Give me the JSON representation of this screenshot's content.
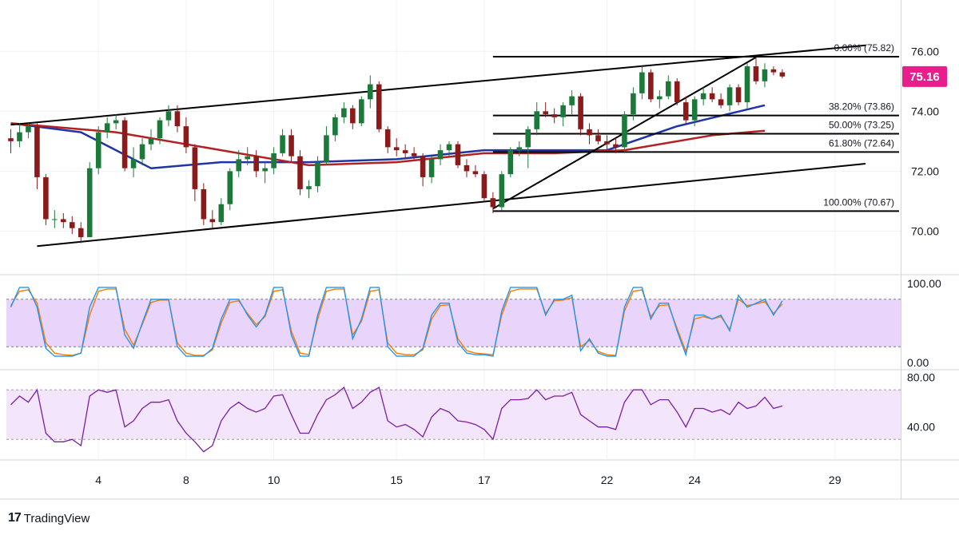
{
  "brand": {
    "logo_glyph": "17",
    "name": "TradingView"
  },
  "chart_data": {
    "type": "candlestick",
    "last_price": "75.16",
    "price_axis": {
      "ticks": [
        "76.00",
        "74.00",
        "72.00",
        "70.00"
      ],
      "ylim": [
        68.6,
        77.5
      ]
    },
    "x_axis": {
      "ticks": [
        "4",
        "8",
        "10",
        "15",
        "17",
        "22",
        "24",
        "29"
      ],
      "tick_index": [
        10,
        20,
        30,
        44,
        54,
        68,
        78,
        94
      ],
      "xlim": [
        0,
        102
      ]
    },
    "candles": [
      [
        73.1,
        72.6,
        73.4,
        73.0
      ],
      [
        73.0,
        72.8,
        73.6,
        73.3
      ],
      [
        73.3,
        73.1,
        73.6,
        73.5
      ],
      [
        73.5,
        71.4,
        73.6,
        71.8
      ],
      [
        71.8,
        70.2,
        71.9,
        70.4
      ],
      [
        70.4,
        70.1,
        70.7,
        70.4
      ],
      [
        70.4,
        70.1,
        70.6,
        70.3
      ],
      [
        70.3,
        69.9,
        70.5,
        70.1
      ],
      [
        70.1,
        69.6,
        70.3,
        69.8
      ],
      [
        69.8,
        69.9,
        72.3,
        72.1
      ],
      [
        72.1,
        71.9,
        73.5,
        73.3
      ],
      [
        73.3,
        73.1,
        73.8,
        73.6
      ],
      [
        73.6,
        73.4,
        73.9,
        73.7
      ],
      [
        73.7,
        72.0,
        73.8,
        72.1
      ],
      [
        72.1,
        71.8,
        72.8,
        72.4
      ],
      [
        72.4,
        72.2,
        73.1,
        72.9
      ],
      [
        72.9,
        72.7,
        73.4,
        73.1
      ],
      [
        73.1,
        72.9,
        73.8,
        73.7
      ],
      [
        73.7,
        73.5,
        74.2,
        74.0
      ],
      [
        74.0,
        73.3,
        74.2,
        73.5
      ],
      [
        73.5,
        72.6,
        73.8,
        72.8
      ],
      [
        72.8,
        71.0,
        72.9,
        71.4
      ],
      [
        71.4,
        70.2,
        71.6,
        70.4
      ],
      [
        70.4,
        70.1,
        70.7,
        70.3
      ],
      [
        70.3,
        70.2,
        71.1,
        70.9
      ],
      [
        70.9,
        70.7,
        72.1,
        72.0
      ],
      [
        72.0,
        71.8,
        72.7,
        72.4
      ],
      [
        72.4,
        72.2,
        72.8,
        72.5
      ],
      [
        72.5,
        71.8,
        72.7,
        72.0
      ],
      [
        72.0,
        71.6,
        72.3,
        72.1
      ],
      [
        72.1,
        71.9,
        72.8,
        72.6
      ],
      [
        72.6,
        72.5,
        73.4,
        73.2
      ],
      [
        73.2,
        72.3,
        73.4,
        72.5
      ],
      [
        72.5,
        71.2,
        72.7,
        71.4
      ],
      [
        71.4,
        71.1,
        71.7,
        71.5
      ],
      [
        71.5,
        71.3,
        72.5,
        72.3
      ],
      [
        72.3,
        72.2,
        73.5,
        73.2
      ],
      [
        73.2,
        73.0,
        73.9,
        73.8
      ],
      [
        73.8,
        73.6,
        74.3,
        74.1
      ],
      [
        74.1,
        73.4,
        74.2,
        73.6
      ],
      [
        73.6,
        73.5,
        74.5,
        74.4
      ],
      [
        74.4,
        74.1,
        75.2,
        74.9
      ],
      [
        74.9,
        73.3,
        75.0,
        73.4
      ],
      [
        73.4,
        72.6,
        73.5,
        72.8
      ],
      [
        72.8,
        72.5,
        73.1,
        72.7
      ],
      [
        72.7,
        72.4,
        72.9,
        72.6
      ],
      [
        72.6,
        72.4,
        72.8,
        72.5
      ],
      [
        72.5,
        71.5,
        72.6,
        71.8
      ],
      [
        71.8,
        71.6,
        72.5,
        72.4
      ],
      [
        72.4,
        72.2,
        72.9,
        72.7
      ],
      [
        72.7,
        72.5,
        73.0,
        72.9
      ],
      [
        72.9,
        72.1,
        73.0,
        72.2
      ],
      [
        72.2,
        71.8,
        72.4,
        72.0
      ],
      [
        72.0,
        71.8,
        72.2,
        71.9
      ],
      [
        71.9,
        71.0,
        72.0,
        71.1
      ],
      [
        71.1,
        70.6,
        71.3,
        70.8
      ],
      [
        70.8,
        70.7,
        72.0,
        71.9
      ],
      [
        71.9,
        71.8,
        72.8,
        72.7
      ],
      [
        72.7,
        72.5,
        73.0,
        72.8
      ],
      [
        72.8,
        72.1,
        73.5,
        73.4
      ],
      [
        73.4,
        73.2,
        74.3,
        74.0
      ],
      [
        74.0,
        73.8,
        74.3,
        73.9
      ],
      [
        73.9,
        73.6,
        74.1,
        73.8
      ],
      [
        73.8,
        73.5,
        74.3,
        74.2
      ],
      [
        74.2,
        73.9,
        74.7,
        74.5
      ],
      [
        74.5,
        73.2,
        74.6,
        73.4
      ],
      [
        73.4,
        72.9,
        73.6,
        73.2
      ],
      [
        73.2,
        72.9,
        73.4,
        73.0
      ],
      [
        73.0,
        72.7,
        73.2,
        72.9
      ],
      [
        72.9,
        72.6,
        73.1,
        72.8
      ],
      [
        72.8,
        72.6,
        74.0,
        73.9
      ],
      [
        73.9,
        73.7,
        74.8,
        74.6
      ],
      [
        74.6,
        74.4,
        75.5,
        75.3
      ],
      [
        75.3,
        74.3,
        75.4,
        74.4
      ],
      [
        74.4,
        74.1,
        74.7,
        74.5
      ],
      [
        74.5,
        74.4,
        75.2,
        75.0
      ],
      [
        75.0,
        74.2,
        75.1,
        74.3
      ],
      [
        74.3,
        73.6,
        74.5,
        73.7
      ],
      [
        73.7,
        73.5,
        74.5,
        74.4
      ],
      [
        74.4,
        74.2,
        74.8,
        74.6
      ],
      [
        74.6,
        74.3,
        74.8,
        74.4
      ],
      [
        74.4,
        74.1,
        74.6,
        74.2
      ],
      [
        74.2,
        74.0,
        74.9,
        74.8
      ],
      [
        74.8,
        74.2,
        74.9,
        74.3
      ],
      [
        74.3,
        74.1,
        75.6,
        75.5
      ],
      [
        75.5,
        74.9,
        75.8,
        75.0
      ],
      [
        75.0,
        74.8,
        75.6,
        75.4
      ],
      [
        75.4,
        75.2,
        75.5,
        75.3
      ],
      [
        75.3,
        75.1,
        75.4,
        75.16
      ]
    ],
    "moving_averages": [
      {
        "name": "",
        "color": "#2035a3",
        "points": [
          [
            0,
            73.6
          ],
          [
            8,
            73.3
          ],
          [
            16,
            72.1
          ],
          [
            24,
            72.3
          ],
          [
            34,
            72.3
          ],
          [
            44,
            72.4
          ],
          [
            54,
            72.7
          ],
          [
            62,
            72.7
          ],
          [
            68,
            72.7
          ],
          [
            76,
            73.5
          ],
          [
            86,
            74.2
          ]
        ]
      },
      {
        "name": "",
        "color": "#b22222",
        "points": [
          [
            0,
            73.6
          ],
          [
            12,
            73.3
          ],
          [
            24,
            72.7
          ],
          [
            34,
            72.2
          ],
          [
            44,
            72.3
          ],
          [
            54,
            72.6
          ],
          [
            62,
            72.6
          ],
          [
            70,
            72.7
          ],
          [
            80,
            73.2
          ],
          [
            86,
            73.35
          ]
        ]
      }
    ],
    "trendlines": [
      {
        "from": [
          3,
          69.5
        ],
        "to": [
          97.5,
          72.25
        ]
      },
      {
        "from": [
          0,
          73.55
        ],
        "to": [
          97.5,
          76.2
        ]
      },
      {
        "from": [
          55,
          70.75
        ],
        "to": [
          85,
          75.8
        ]
      }
    ],
    "fibonacci": {
      "x_start": 55,
      "x_end": 104,
      "levels": [
        {
          "label": "0.00% (75.82)",
          "price": 75.82
        },
        {
          "label": "38.20% (73.86)",
          "price": 73.86
        },
        {
          "label": "50.00% (73.25)",
          "price": 73.25
        },
        {
          "label": "61.80% (72.64)",
          "price": 72.64
        },
        {
          "label": "100.00% (70.67)",
          "price": 70.67
        }
      ]
    },
    "stochastic": {
      "ticks": [
        "100.00",
        "0.00"
      ],
      "ylim": [
        -8,
        108
      ],
      "band": [
        20,
        80
      ],
      "k": [
        70,
        95,
        95,
        70,
        18,
        8,
        8,
        8,
        12,
        70,
        95,
        95,
        95,
        35,
        18,
        50,
        80,
        80,
        80,
        20,
        8,
        8,
        8,
        18,
        55,
        80,
        80,
        60,
        45,
        60,
        95,
        95,
        35,
        8,
        8,
        60,
        95,
        95,
        95,
        30,
        55,
        95,
        95,
        20,
        8,
        8,
        8,
        18,
        60,
        75,
        75,
        25,
        12,
        10,
        10,
        8,
        65,
        95,
        95,
        95,
        95,
        60,
        80,
        80,
        85,
        15,
        30,
        12,
        8,
        8,
        70,
        95,
        95,
        55,
        75,
        75,
        40,
        10,
        60,
        60,
        55,
        60,
        40,
        85,
        70,
        75,
        80,
        60,
        78
      ],
      "d": [
        72,
        90,
        92,
        75,
        25,
        12,
        10,
        9,
        12,
        60,
        90,
        93,
        93,
        42,
        22,
        48,
        76,
        79,
        79,
        25,
        12,
        9,
        9,
        16,
        50,
        76,
        78,
        62,
        48,
        58,
        90,
        92,
        40,
        12,
        10,
        55,
        90,
        93,
        93,
        35,
        52,
        90,
        92,
        25,
        12,
        10,
        10,
        16,
        55,
        72,
        73,
        30,
        15,
        12,
        11,
        10,
        60,
        90,
        93,
        93,
        93,
        62,
        78,
        79,
        82,
        20,
        28,
        14,
        10,
        9,
        65,
        90,
        92,
        58,
        72,
        73,
        43,
        14,
        55,
        58,
        55,
        58,
        42,
        80,
        72,
        74,
        77,
        62,
        74
      ]
    },
    "rsi": {
      "ticks": [
        "80.00",
        "40.00"
      ],
      "ylim": [
        14,
        85
      ],
      "band": [
        30,
        70
      ],
      "color": "#7b1fa2",
      "values": [
        58,
        65,
        60,
        70,
        35,
        28,
        28,
        30,
        25,
        65,
        70,
        68,
        70,
        40,
        45,
        55,
        60,
        60,
        62,
        45,
        35,
        28,
        20,
        25,
        45,
        55,
        60,
        55,
        52,
        55,
        65,
        66,
        50,
        35,
        35,
        50,
        62,
        66,
        72,
        55,
        60,
        68,
        72,
        45,
        40,
        42,
        38,
        32,
        48,
        55,
        52,
        45,
        44,
        42,
        38,
        30,
        55,
        62,
        62,
        63,
        70,
        62,
        65,
        65,
        68,
        50,
        45,
        40,
        40,
        38,
        60,
        70,
        70,
        58,
        62,
        62,
        52,
        40,
        55,
        55,
        52,
        54,
        50,
        60,
        55,
        57,
        64,
        55,
        57
      ]
    }
  }
}
